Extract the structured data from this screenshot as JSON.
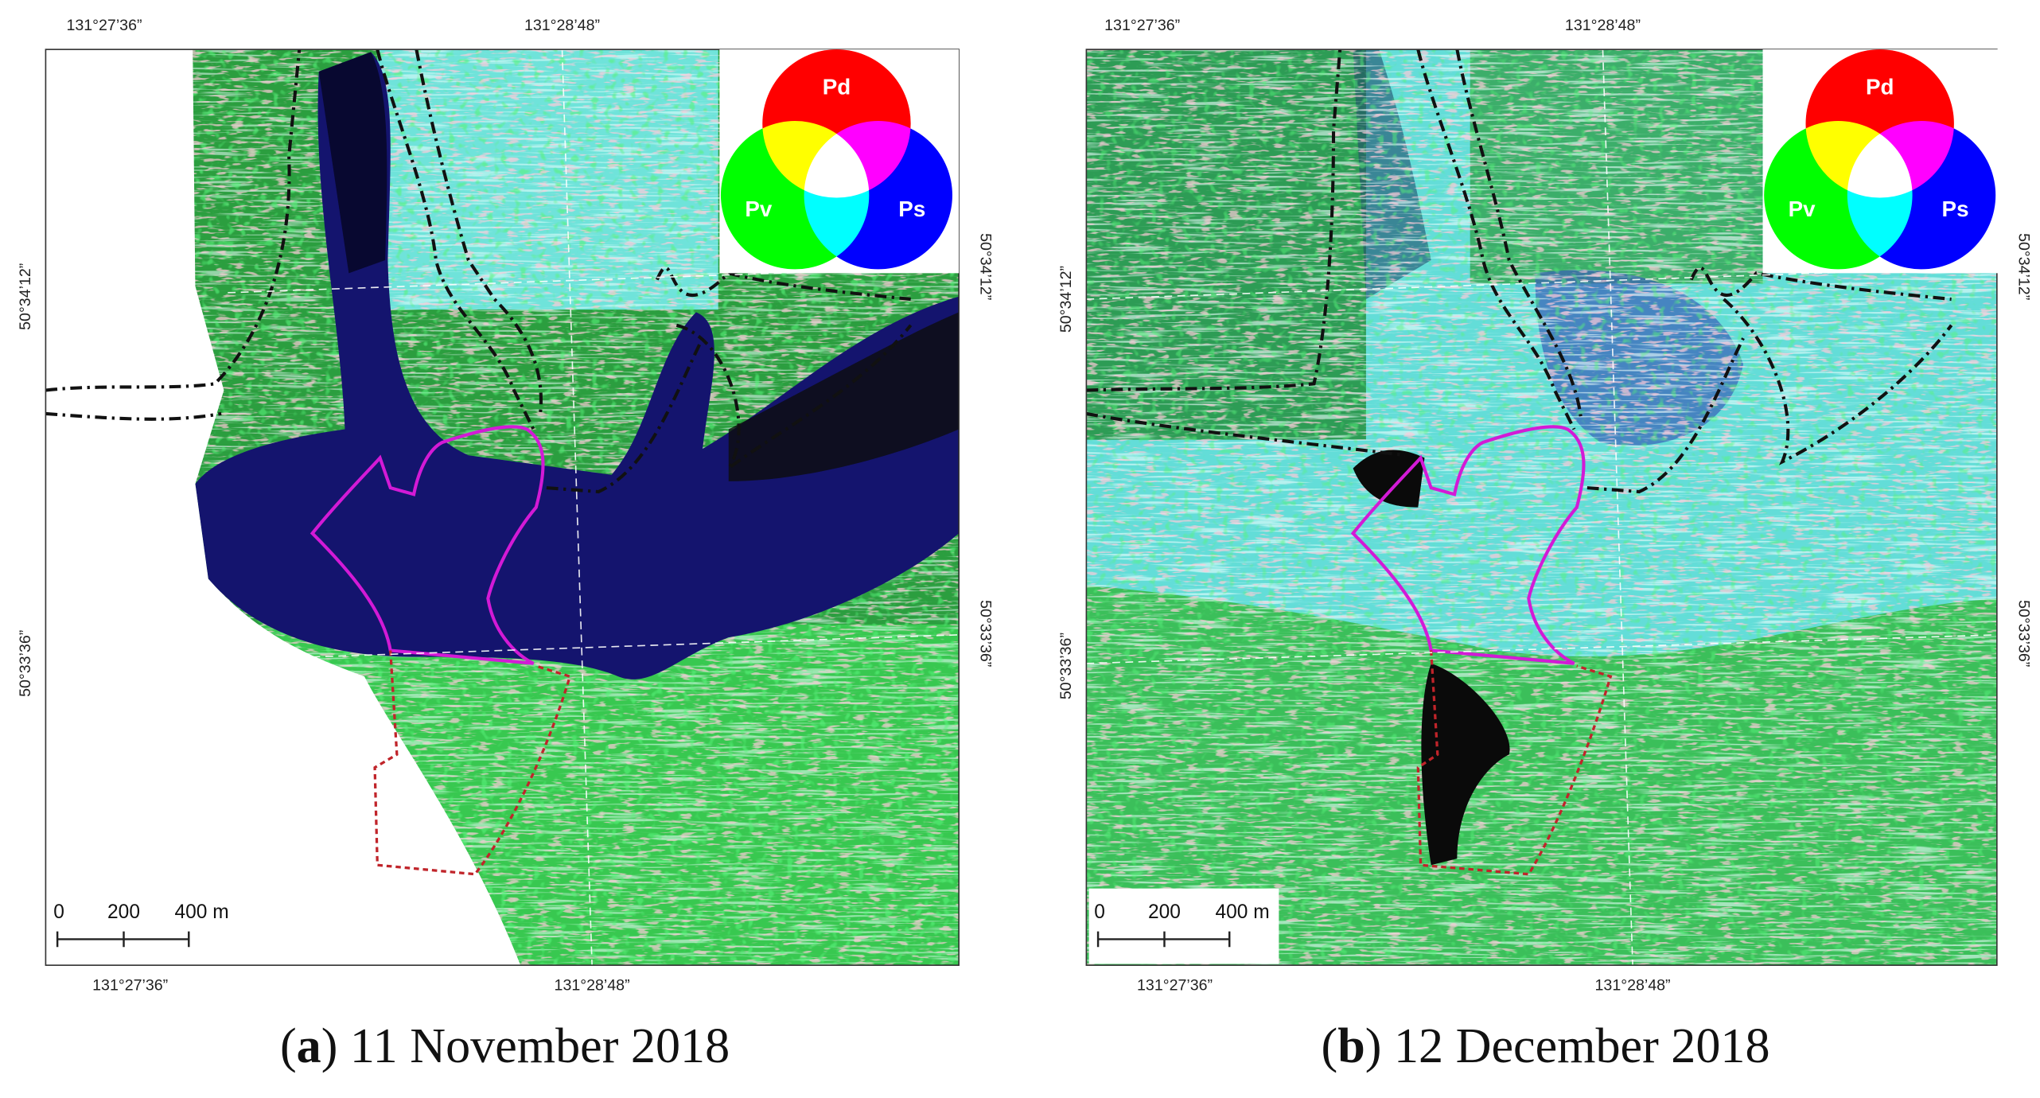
{
  "panels": [
    {
      "top_labels": [
        "131°27’36”",
        "131°28’48”"
      ],
      "bottom_labels": [
        "131°27’36”",
        "131°28’48”"
      ],
      "left_labels": [
        "50°34’12”",
        "50°33’36”"
      ],
      "right_labels": [
        "50°34’12”",
        "50°33’36”"
      ],
      "legend": {
        "red": "Pd",
        "green": "Pv",
        "blue": "Ps"
      },
      "scale_labels": [
        "0",
        "200",
        "400 m"
      ],
      "caption": {
        "open": "(",
        "letter": "a",
        "rest": ") 11 November 2018"
      }
    },
    {
      "top_labels": [
        "131°27’36”",
        "131°28’48”"
      ],
      "bottom_labels": [
        "131°27’36”",
        "131°28’48”"
      ],
      "left_labels": [
        "50°34’12”",
        "50°33’36”"
      ],
      "right_labels": [
        "50°34’12”",
        "50°33’36”"
      ],
      "legend": {
        "red": "Pd",
        "green": "Pv",
        "blue": "Ps"
      },
      "scale_labels": [
        "0",
        "200",
        "400 m"
      ],
      "caption": {
        "open": "(",
        "letter": "b",
        "rest": ") 12 December 2018"
      }
    }
  ]
}
